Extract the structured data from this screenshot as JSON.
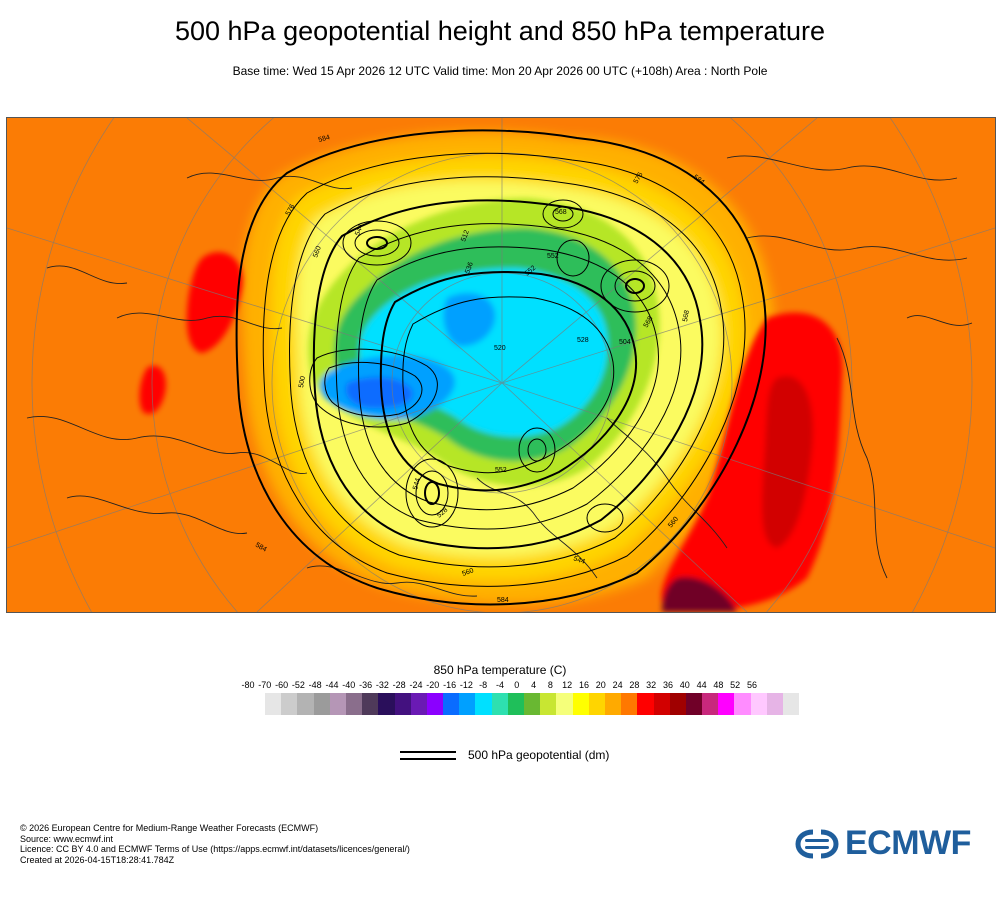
{
  "title": "500 hPa geopotential height and 850 hPa temperature",
  "subtitle": "Base time: Wed 15 Apr 2026 12 UTC Valid time: Mon 20 Apr 2026 00 UTC (+108h) Area : North Pole",
  "map": {
    "contour_labels": [
      "584",
      "584",
      "576",
      "544",
      "560",
      "512",
      "536",
      "552",
      "520",
      "568",
      "528",
      "504",
      "500",
      "568",
      "544",
      "584",
      "528",
      "560",
      "552",
      "544",
      "560",
      "568",
      "576",
      "552",
      "584"
    ],
    "colors": {
      "background_warm": "#fb7c05",
      "ocean_deep": "#ff0000",
      "core_cold": "#00c8ff",
      "contour": "#000000",
      "coast": "#222222"
    }
  },
  "legend": {
    "title": "850 hPa temperature (C)",
    "ticks": [
      "-80",
      "-70",
      "-60",
      "-52",
      "-48",
      "-44",
      "-40",
      "-36",
      "-32",
      "-28",
      "-24",
      "-20",
      "-16",
      "-12",
      "-8",
      "-4",
      "0",
      "4",
      "8",
      "12",
      "16",
      "20",
      "24",
      "28",
      "32",
      "36",
      "40",
      "44",
      "48",
      "52",
      "56"
    ],
    "colors": [
      "#e6e6e6",
      "#cccccc",
      "#b3b3b3",
      "#9b9b9b",
      "#b596b6",
      "#8a6e8c",
      "#4f3a5a",
      "#2a0f5b",
      "#43117f",
      "#6a1ab4",
      "#8b00ff",
      "#0a6cff",
      "#00a0ff",
      "#00e0ff",
      "#2ee0b0",
      "#1fbf5a",
      "#69b832",
      "#c8e632",
      "#f5ff7a",
      "#ffff00",
      "#ffd500",
      "#ffaa00",
      "#ff7800",
      "#ff0000",
      "#d20000",
      "#a00000",
      "#700028",
      "#c8287c",
      "#ff00ff",
      "#ff8cff",
      "#ffc8ff",
      "#e6b4e6",
      "#e6e6e6"
    ]
  },
  "geopotential_legend": {
    "label": "500 hPa geopotential (dm)"
  },
  "footer": {
    "lines": [
      "© 2026 European Centre for Medium-Range Weather Forecasts (ECMWF)",
      "Source: www.ecmwf.int",
      "Licence: CC BY 4.0 and ECMWF Terms of Use (https://apps.ecmwf.int/datasets/licences/general/)",
      "Created at 2026-04-15T18:28:41.784Z"
    ]
  },
  "logo": {
    "text": "ECMWF"
  }
}
